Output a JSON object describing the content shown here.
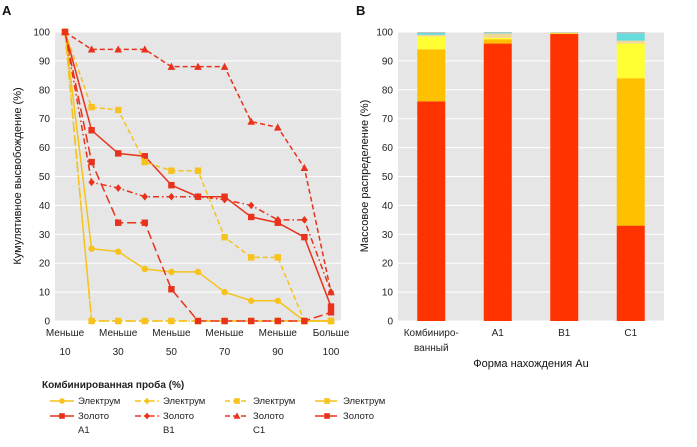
{
  "colors": {
    "electrum": "#f6c21b",
    "gold": "#e8321c",
    "plot_bg": "#e6e6e6",
    "grid": "#ffffff",
    "bar_red": "#ff3300",
    "bar_orange": "#ffc000",
    "bar_yellow": "#ffff33",
    "bar_tan": "#f2d896",
    "bar_cyan": "#66dddd",
    "bar_grey": "#bfbfbf"
  },
  "chart_data": [
    {
      "panel": "A",
      "type": "line",
      "ylabel": "Кумулятивное высвобождение (%)",
      "ylim": [
        0,
        100
      ],
      "yticks": [
        0,
        10,
        20,
        30,
        40,
        50,
        60,
        70,
        80,
        90,
        100
      ],
      "x": [
        10,
        20,
        30,
        40,
        50,
        60,
        70,
        80,
        90,
        100,
        110
      ],
      "xlim": [
        10,
        110
      ],
      "xtick_positions": [
        10,
        30,
        50,
        70,
        90,
        110
      ],
      "xtick_top": [
        "Меньше",
        "Меньше",
        "Меньше",
        "Меньше",
        "Меньше",
        "Больше"
      ],
      "xtick_bottom": [
        "10",
        "30",
        "50",
        "70",
        "90",
        "100"
      ],
      "series": [
        {
          "name": "Электрум",
          "group": "Комбинированная проба (%)",
          "mineral": "electrum",
          "style": "solid",
          "marker": "circle",
          "points": [
            [
              10,
              100
            ],
            [
              20,
              25
            ],
            [
              30,
              24
            ],
            [
              40,
              18
            ],
            [
              50,
              17
            ],
            [
              60,
              17
            ],
            [
              70,
              10
            ],
            [
              80,
              7
            ],
            [
              90,
              7
            ],
            [
              100,
              0
            ],
            [
              110,
              0
            ]
          ]
        },
        {
          "name": "Золото",
          "group": "A1",
          "mineral": "gold",
          "style": "solid",
          "marker": "square",
          "points": [
            [
              10,
              100
            ],
            [
              20,
              66
            ],
            [
              30,
              58
            ],
            [
              40,
              57
            ],
            [
              50,
              47
            ],
            [
              60,
              43
            ],
            [
              70,
              43
            ],
            [
              80,
              36
            ],
            [
              90,
              34
            ],
            [
              100,
              29
            ],
            [
              110,
              5
            ]
          ]
        },
        {
          "name": "Электрум",
          "group": "Комбинированная проба (%)",
          "mineral": "electrum",
          "style": "dashdot",
          "marker": "diamond",
          "points": [
            [
              10,
              100
            ],
            [
              20,
              0
            ],
            [
              30,
              0
            ],
            [
              40,
              0
            ],
            [
              50,
              0
            ],
            [
              60,
              0
            ],
            [
              70,
              0
            ],
            [
              80,
              0
            ],
            [
              90,
              0
            ],
            [
              100,
              0
            ],
            [
              110,
              0
            ]
          ]
        },
        {
          "name": "Золото",
          "group": "B1",
          "mineral": "gold",
          "style": "dashdot",
          "marker": "diamond",
          "points": [
            [
              10,
              100
            ],
            [
              20,
              48
            ],
            [
              30,
              46
            ],
            [
              40,
              43
            ],
            [
              50,
              43
            ],
            [
              60,
              43
            ],
            [
              70,
              42
            ],
            [
              80,
              40
            ],
            [
              90,
              35
            ],
            [
              100,
              35
            ],
            [
              110,
              10
            ]
          ]
        },
        {
          "name": "Электрум",
          "group": "Комбинированная проба (%)",
          "mineral": "electrum",
          "style": "dashed",
          "marker": "square",
          "points": [
            [
              10,
              100
            ],
            [
              20,
              74
            ],
            [
              30,
              73
            ],
            [
              40,
              55
            ],
            [
              50,
              52
            ],
            [
              60,
              52
            ],
            [
              70,
              29
            ],
            [
              80,
              22
            ],
            [
              90,
              22
            ],
            [
              100,
              0
            ],
            [
              110,
              0
            ]
          ]
        },
        {
          "name": "Золото",
          "group": "C1",
          "mineral": "gold",
          "style": "dashed",
          "marker": "triangle",
          "points": [
            [
              10,
              100
            ],
            [
              20,
              94
            ],
            [
              30,
              94
            ],
            [
              40,
              94
            ],
            [
              50,
              88
            ],
            [
              60,
              88
            ],
            [
              70,
              88
            ],
            [
              80,
              69
            ],
            [
              90,
              67
            ],
            [
              100,
              53
            ],
            [
              110,
              10
            ]
          ]
        },
        {
          "name": "Электрум",
          "group": "Комбинированная проба (%)",
          "mineral": "electrum",
          "style": "longdash",
          "marker": "square",
          "points": [
            [
              10,
              100
            ],
            [
              20,
              0
            ],
            [
              30,
              0
            ],
            [
              40,
              0
            ],
            [
              50,
              0
            ],
            [
              60,
              0
            ],
            [
              70,
              0
            ],
            [
              80,
              0
            ],
            [
              90,
              0
            ],
            [
              100,
              0
            ],
            [
              110,
              0
            ]
          ]
        },
        {
          "name": "Золото",
          "group": "",
          "mineral": "gold",
          "style": "longdash",
          "marker": "square",
          "points": [
            [
              10,
              100
            ],
            [
              20,
              55
            ],
            [
              30,
              34
            ],
            [
              40,
              34
            ],
            [
              50,
              11
            ],
            [
              60,
              0
            ],
            [
              70,
              0
            ],
            [
              80,
              0
            ],
            [
              90,
              0
            ],
            [
              100,
              0
            ],
            [
              110,
              3
            ]
          ]
        }
      ]
    },
    {
      "panel": "B",
      "type": "bar",
      "stacked": true,
      "ylabel": "Массовое распределение (%)",
      "xlabel": "Форма нахождения Au",
      "ylim": [
        0,
        100
      ],
      "yticks": [
        0,
        10,
        20,
        30,
        40,
        50,
        60,
        70,
        80,
        90,
        100
      ],
      "categories": [
        [
          "Комбиниро-",
          "ванный"
        ],
        [
          "A1"
        ],
        [
          "B1"
        ],
        [
          "C1"
        ]
      ],
      "series": [
        {
          "name": "red",
          "values": [
            76,
            96,
            99.3,
            33
          ]
        },
        {
          "name": "orange",
          "values": [
            18,
            1.5,
            0.2,
            51
          ]
        },
        {
          "name": "yellow",
          "values": [
            4.5,
            0.5,
            0.1,
            12
          ]
        },
        {
          "name": "tan",
          "values": [
            0.5,
            1.5,
            0.2,
            1
          ]
        },
        {
          "name": "cyan",
          "values": [
            0.7,
            0.3,
            0.1,
            2.5
          ]
        },
        {
          "name": "grey",
          "values": [
            0.3,
            0.2,
            0.1,
            0.5
          ]
        }
      ]
    }
  ],
  "legend": {
    "title": "Комбинированная проба (%)",
    "rows": [
      [
        {
          "label": "Электрум",
          "sublabel": "",
          "series": 0
        },
        {
          "label": "Электрум",
          "sublabel": "",
          "series": 2
        },
        {
          "label": "Электрум",
          "sublabel": "",
          "series": 4
        },
        {
          "label": "Электрум",
          "sublabel": "",
          "series": 6
        }
      ],
      [
        {
          "label": "Золото",
          "sublabel": "A1",
          "series": 1
        },
        {
          "label": "Золото",
          "sublabel": "B1",
          "series": 3
        },
        {
          "label": "Золото",
          "sublabel": "C1",
          "series": 5
        },
        {
          "label": "Золото",
          "sublabel": "",
          "series": 7
        }
      ]
    ]
  }
}
